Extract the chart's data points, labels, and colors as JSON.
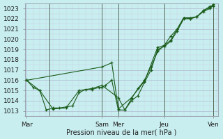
{
  "xlabel": "Pression niveau de la mer( hPa )",
  "background_color": "#c8eef0",
  "grid_color_major": "#b0b8d0",
  "grid_color_minor": "#c8d0e0",
  "line_color": "#1a5c1a",
  "ylim": [
    1012.5,
    1023.5
  ],
  "xlim": [
    -0.3,
    29.3
  ],
  "day_labels": [
    "Mar",
    "Sam",
    "Mer",
    "Jeu",
    "Ven"
  ],
  "day_positions": [
    0,
    11.5,
    14,
    21,
    28.5
  ],
  "vline_positions": [
    3.5,
    11.5,
    14,
    21,
    28.5
  ],
  "series1_x": [
    0,
    1,
    2,
    3,
    4,
    5,
    6,
    7,
    8,
    9,
    10,
    11,
    11.5,
    12,
    13,
    14,
    15,
    16,
    17,
    18,
    19,
    20,
    21,
    22,
    23,
    24,
    25,
    26,
    27,
    28,
    28.5
  ],
  "series1_y": [
    1016.0,
    1015.3,
    1015.0,
    1013.1,
    1013.3,
    1013.3,
    1013.4,
    1013.5,
    1014.8,
    1015.1,
    1015.1,
    1015.3,
    1015.3,
    1015.5,
    1016.0,
    1013.1,
    1013.1,
    1014.2,
    1015.2,
    1016.0,
    1017.3,
    1018.8,
    1019.4,
    1020.3,
    1021.0,
    1022.1,
    1022.0,
    1022.2,
    1022.8,
    1023.2,
    1023.2
  ],
  "series2_x": [
    0,
    2,
    4,
    6,
    8,
    10,
    11.5,
    14,
    15,
    16,
    17,
    18,
    19,
    20,
    21,
    22,
    23,
    24,
    25,
    26,
    27,
    28,
    28.5
  ],
  "series2_y": [
    1016.0,
    1015.0,
    1013.2,
    1013.3,
    1015.0,
    1015.2,
    1015.5,
    1014.3,
    1013.1,
    1014.0,
    1014.5,
    1015.8,
    1017.0,
    1019.0,
    1019.3,
    1019.8,
    1020.8,
    1022.0,
    1022.0,
    1022.2,
    1022.7,
    1023.0,
    1023.3
  ],
  "series3_x": [
    0,
    11.5,
    13,
    14,
    16,
    18,
    20,
    21,
    22,
    23,
    24,
    25,
    26,
    27,
    28,
    28.5
  ],
  "series3_y": [
    1016.0,
    1017.3,
    1017.7,
    1013.2,
    1014.3,
    1015.9,
    1019.2,
    1019.4,
    1019.9,
    1021.0,
    1022.1,
    1022.1,
    1022.2,
    1022.8,
    1023.1,
    1023.4
  ],
  "label_fontsize": 7,
  "tick_fontsize": 6.5
}
